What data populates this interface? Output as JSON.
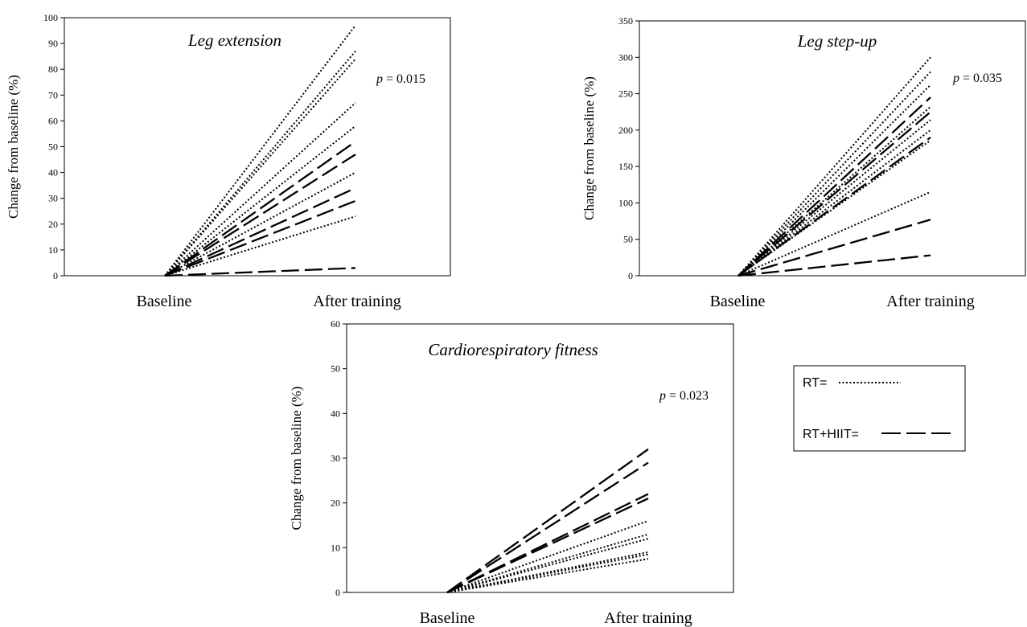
{
  "chart_data": [
    {
      "type": "line",
      "title": "Leg extension",
      "ylabel": "Change from baseline  (%)",
      "categories": [
        "Baseline",
        "After training"
      ],
      "ylim": [
        0,
        100
      ],
      "yticks": [
        0,
        10,
        20,
        30,
        40,
        50,
        60,
        70,
        80,
        90,
        100
      ],
      "annotation": {
        "p": "p",
        "rest": " = 0.015"
      },
      "series": [
        {
          "group": "RT",
          "values": [
            0,
            97
          ]
        },
        {
          "group": "RT",
          "values": [
            0,
            87
          ]
        },
        {
          "group": "RT",
          "values": [
            0,
            84
          ]
        },
        {
          "group": "RT",
          "values": [
            0,
            67
          ]
        },
        {
          "group": "RT",
          "values": [
            0,
            58
          ]
        },
        {
          "group": "RT",
          "values": [
            0,
            40
          ]
        },
        {
          "group": "RT",
          "values": [
            0,
            23
          ]
        },
        {
          "group": "RT+HIIT",
          "values": [
            0,
            52
          ]
        },
        {
          "group": "RT+HIIT",
          "values": [
            0,
            47
          ]
        },
        {
          "group": "RT+HIIT",
          "values": [
            0,
            34
          ]
        },
        {
          "group": "RT+HIIT",
          "values": [
            0,
            29
          ]
        },
        {
          "group": "RT+HIIT",
          "values": [
            0,
            3
          ]
        }
      ]
    },
    {
      "type": "line",
      "title": "Leg step-up",
      "ylabel": "Change from baseline  (%)",
      "categories": [
        "Baseline",
        "After training"
      ],
      "ylim": [
        0,
        350
      ],
      "yticks": [
        0,
        50,
        100,
        150,
        200,
        250,
        300,
        350
      ],
      "annotation": {
        "p": "p",
        "rest": " = 0.035"
      },
      "series": [
        {
          "group": "RT",
          "values": [
            0,
            300
          ]
        },
        {
          "group": "RT",
          "values": [
            0,
            280
          ]
        },
        {
          "group": "RT",
          "values": [
            0,
            262
          ]
        },
        {
          "group": "RT",
          "values": [
            0,
            232
          ]
        },
        {
          "group": "RT",
          "values": [
            0,
            214
          ]
        },
        {
          "group": "RT",
          "values": [
            0,
            200
          ]
        },
        {
          "group": "RT",
          "values": [
            0,
            186
          ]
        },
        {
          "group": "RT",
          "values": [
            0,
            115
          ]
        },
        {
          "group": "RT+HIIT",
          "values": [
            0,
            245
          ]
        },
        {
          "group": "RT+HIIT",
          "values": [
            0,
            225
          ]
        },
        {
          "group": "RT+HIIT",
          "values": [
            0,
            190
          ]
        },
        {
          "group": "RT+HIIT",
          "values": [
            0,
            77
          ]
        },
        {
          "group": "RT+HIIT",
          "values": [
            0,
            28
          ]
        }
      ]
    },
    {
      "type": "line",
      "title": "Cardiorespiratory fitness",
      "ylabel": "Change from baseline  (%)",
      "categories": [
        "Baseline",
        "After training"
      ],
      "ylim": [
        0,
        60
      ],
      "yticks": [
        0,
        10,
        20,
        30,
        40,
        50,
        60
      ],
      "annotation": {
        "p": "p",
        "rest": " = 0.023"
      },
      "series": [
        {
          "group": "RT+HIIT",
          "values": [
            0,
            32
          ]
        },
        {
          "group": "RT+HIIT",
          "values": [
            0,
            29
          ]
        },
        {
          "group": "RT+HIIT",
          "values": [
            0,
            22
          ]
        },
        {
          "group": "RT+HIIT",
          "values": [
            0,
            21
          ]
        },
        {
          "group": "RT",
          "values": [
            0,
            16
          ]
        },
        {
          "group": "RT",
          "values": [
            0,
            13
          ]
        },
        {
          "group": "RT",
          "values": [
            0,
            12
          ]
        },
        {
          "group": "RT",
          "values": [
            0,
            9
          ]
        },
        {
          "group": "RT",
          "values": [
            0,
            8.5
          ]
        },
        {
          "group": "RT",
          "values": [
            0,
            7.5
          ]
        }
      ]
    }
  ],
  "legend": {
    "placement": "right of bottom chart",
    "items": [
      {
        "label": "RT=",
        "group": "RT",
        "line_style": "dotted"
      },
      {
        "label": "RT+HIIT=",
        "group": "RT+HIIT",
        "line_style": "dashed"
      }
    ]
  },
  "colors": {
    "line": "#000000",
    "axis": "#000000",
    "background": "#ffffff"
  }
}
